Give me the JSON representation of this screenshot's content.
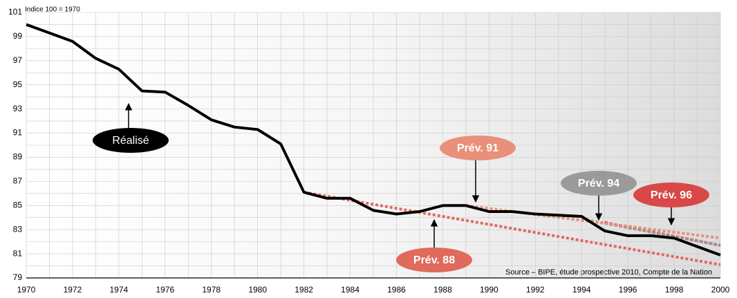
{
  "chart_data": {
    "type": "line",
    "y_axis_label": "Indice 100 = 1970",
    "source": "Source – BIPE, étude prospective 2010, Compte de la Nation",
    "xlim": [
      1970,
      2000
    ],
    "xticks": [
      1970,
      1972,
      1974,
      1976,
      1978,
      1980,
      1982,
      1984,
      1986,
      1988,
      1990,
      1992,
      1994,
      1996,
      1998,
      2000
    ],
    "ylim": [
      79,
      101
    ],
    "yticks": [
      79,
      81,
      83,
      85,
      87,
      89,
      91,
      93,
      95,
      97,
      99,
      101
    ],
    "grid": true,
    "series": [
      {
        "name": "Réalisé",
        "color": "#000000",
        "style": "solid",
        "x": [
          1970,
          1971,
          1972,
          1973,
          1974,
          1975,
          1976,
          1977,
          1978,
          1979,
          1980,
          1981,
          1982,
          1983,
          1984,
          1985,
          1986,
          1987,
          1988,
          1989,
          1990,
          1991,
          1992,
          1993,
          1994,
          1995,
          1996,
          1997,
          1998,
          1999,
          2000
        ],
        "values": [
          100,
          99.3,
          98.6,
          97.2,
          96.3,
          94.5,
          94.4,
          93.3,
          92.1,
          91.5,
          91.3,
          90.1,
          86.1,
          85.6,
          85.6,
          84.6,
          84.3,
          84.5,
          85.0,
          85.0,
          84.5,
          84.5,
          84.3,
          84.2,
          84.1,
          82.9,
          82.5,
          82.5,
          82.3,
          81.6,
          80.9
        ]
      },
      {
        "name": "Prév. 88",
        "color": "#e06a5c",
        "style": "dotted",
        "x": [
          1982,
          2000
        ],
        "values": [
          86.1,
          80.1
        ]
      },
      {
        "name": "Prév. 91",
        "color": "#e8907a",
        "style": "dotted",
        "x": [
          1989,
          2000
        ],
        "values": [
          85.0,
          82.3
        ]
      },
      {
        "name": "Prév. 94",
        "color": "#9a9a9a",
        "style": "dotted",
        "x": [
          1994,
          2000
        ],
        "values": [
          83.9,
          81.7
        ]
      },
      {
        "name": "Prév. 96",
        "color": "#d94848",
        "style": "dotted",
        "x": [
          1995,
          2000
        ],
        "values": [
          83.6,
          81.7
        ]
      }
    ]
  }
}
